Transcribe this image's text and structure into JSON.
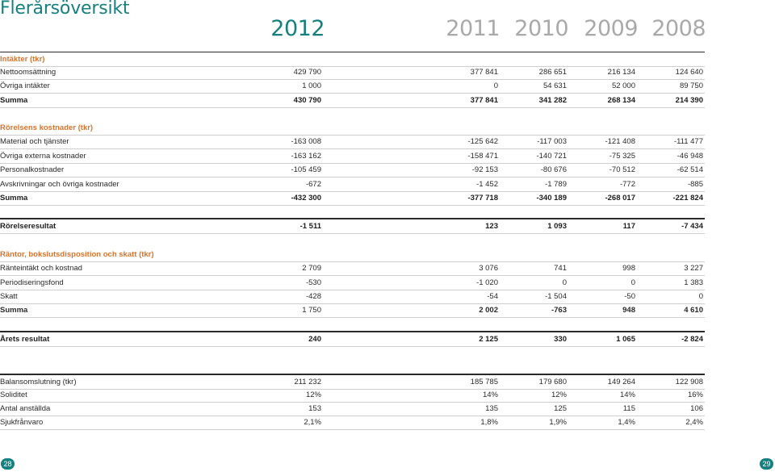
{
  "title": "Flerårsöversikt",
  "years": [
    "2012",
    "2011",
    "2010",
    "2009",
    "2008"
  ],
  "sections": {
    "intakter": {
      "header": "Intäkter (tkr)",
      "rows": [
        {
          "label": "Nettoomsättning",
          "values": [
            "429 790",
            "377 841",
            "286 651",
            "216 134",
            "124 640"
          ]
        },
        {
          "label": "Övriga intäkter",
          "values": [
            "1 000",
            "0",
            "54 631",
            "52 000",
            "89 750"
          ]
        },
        {
          "label": "Summa",
          "values": [
            "430 790",
            "377 841",
            "341 282",
            "268 134",
            "214 390"
          ]
        }
      ]
    },
    "kostnader": {
      "header": "Rörelsens kostnader (tkr)",
      "rows": [
        {
          "label": "Material och tjänster",
          "values": [
            "-163 008",
            "-125 642",
            "-117 003",
            "-121 408",
            "-111 477"
          ]
        },
        {
          "label": "Övriga externa kostnader",
          "values": [
            "-163 162",
            "-158 471",
            "-140 721",
            "-75 325",
            "-46 948"
          ]
        },
        {
          "label": "Personalkostnader",
          "values": [
            "-105 459",
            "-92 153",
            "-80 676",
            "-70 512",
            "-62 514"
          ]
        },
        {
          "label": "Avskrivningar och övriga kostnader",
          "values": [
            "-672",
            "-1 452",
            "-1 789",
            "-772",
            "-885"
          ]
        },
        {
          "label": "Summa",
          "values": [
            "-432 300",
            "-377 718",
            "-340 189",
            "-268 017",
            "-221 824"
          ]
        }
      ]
    },
    "rorelseresultat": {
      "label": "Rörelseresultat",
      "values": [
        "-1 511",
        "123",
        "1 093",
        "117",
        "-7 434"
      ]
    },
    "rantor": {
      "header": "Räntor, bokslutsdisposition och skatt (tkr)",
      "rows": [
        {
          "label": "Ränteintäkt och kostnad",
          "values": [
            "2 709",
            "3 076",
            "741",
            "998",
            "3 227"
          ]
        },
        {
          "label": "Periodiseringsfond",
          "values": [
            "-530",
            "-1 020",
            "0",
            "0",
            "1 383"
          ]
        },
        {
          "label": "Skatt",
          "values": [
            "-428",
            "-54",
            "-1 504",
            "-50",
            "0"
          ]
        },
        {
          "label": "Summa",
          "values": [
            "1 750",
            "2 002",
            "-763",
            "948",
            "4 610"
          ]
        }
      ]
    },
    "arets_resultat": {
      "label": "Årets resultat",
      "values": [
        "240",
        "2 125",
        "330",
        "1 065",
        "-2 824"
      ]
    },
    "nyckeltal": {
      "rows": [
        {
          "label": "Balansomslutning (tkr)",
          "values": [
            "211 232",
            "185 785",
            "179 680",
            "149 264",
            "122 908"
          ]
        },
        {
          "label": "Soliditet",
          "values": [
            "12%",
            "14%",
            "12%",
            "14%",
            "16%"
          ]
        },
        {
          "label": "Antal anställda",
          "values": [
            "153",
            "135",
            "125",
            "115",
            "106"
          ]
        },
        {
          "label": "Sjukfrånvaro",
          "values": [
            "2,1%",
            "1,8%",
            "1,9%",
            "1,4%",
            "2,4%"
          ]
        }
      ]
    }
  },
  "page_numbers": {
    "left": "28",
    "right": "29"
  },
  "colors": {
    "accent_teal": "#17807f",
    "section_orange": "#d8732a",
    "year_grey": "#a9a9a9"
  }
}
